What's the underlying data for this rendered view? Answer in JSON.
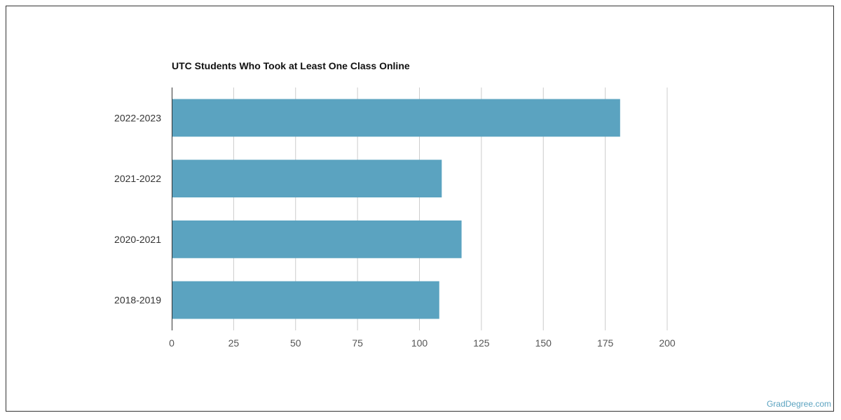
{
  "chart_data": {
    "type": "bar",
    "orientation": "horizontal",
    "title": "UTC Students Who Took at Least One Class Online",
    "categories": [
      "2022-2023",
      "2021-2022",
      "2020-2021",
      "2018-2019"
    ],
    "values": [
      181,
      109,
      117,
      108
    ],
    "xlim": [
      0,
      200
    ],
    "xticks": [
      "0",
      "25",
      "50",
      "75",
      "100",
      "125",
      "150",
      "175",
      "200"
    ],
    "xlabel": "",
    "ylabel": "",
    "grid": true,
    "bar_color": "#5ba3c0",
    "grid_color": "#cccccc"
  },
  "watermark": "GradDegree.com"
}
